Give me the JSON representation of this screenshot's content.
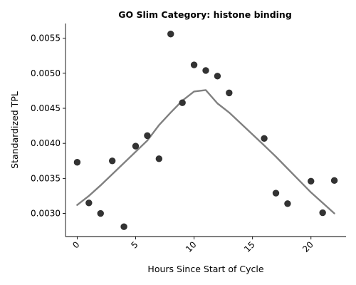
{
  "chart_data": {
    "type": "scatter",
    "title": "GO Slim Category: histone binding",
    "xlabel": "Hours Since Start of Cycle",
    "ylabel": "Standardized TPL",
    "xlim": [
      -1,
      23
    ],
    "ylim": [
      0.00267,
      0.00571
    ],
    "x_ticks": [
      0,
      5,
      10,
      15,
      20
    ],
    "x_tick_labels": [
      "0",
      "5",
      "10",
      "15",
      "20"
    ],
    "y_ticks": [
      0.003,
      0.0035,
      0.004,
      0.0045,
      0.005,
      0.0055
    ],
    "y_tick_labels": [
      "0.0030",
      "0.0035",
      "0.0040",
      "0.0045",
      "0.0050",
      "0.0055"
    ],
    "grid": false,
    "point_color": "#333333",
    "line_color": "#808080",
    "series": [
      {
        "type": "scatter",
        "x": [
          0,
          1,
          2,
          3,
          4,
          5,
          6,
          7,
          8,
          9,
          10,
          11,
          12,
          13,
          16,
          17,
          18,
          20,
          21,
          22
        ],
        "y": [
          0.00373,
          0.00315,
          0.003,
          0.00375,
          0.00281,
          0.00396,
          0.00411,
          0.00378,
          0.00556,
          0.00458,
          0.00512,
          0.00504,
          0.00496,
          0.00472,
          0.00407,
          0.00329,
          0.00314,
          0.00346,
          0.00301,
          0.00347
        ]
      },
      {
        "type": "line",
        "x": [
          0,
          1,
          2,
          3,
          4,
          5,
          6,
          7,
          8,
          9,
          10,
          11,
          12,
          13,
          16,
          17,
          18,
          20,
          21,
          22
        ],
        "y": [
          0.00312,
          0.00325,
          0.0034,
          0.00356,
          0.00372,
          0.00388,
          0.00404,
          0.00426,
          0.00444,
          0.00461,
          0.00474,
          0.00476,
          0.00457,
          0.00444,
          0.00397,
          0.00381,
          0.00364,
          0.0033,
          0.00315,
          0.003
        ]
      }
    ]
  }
}
